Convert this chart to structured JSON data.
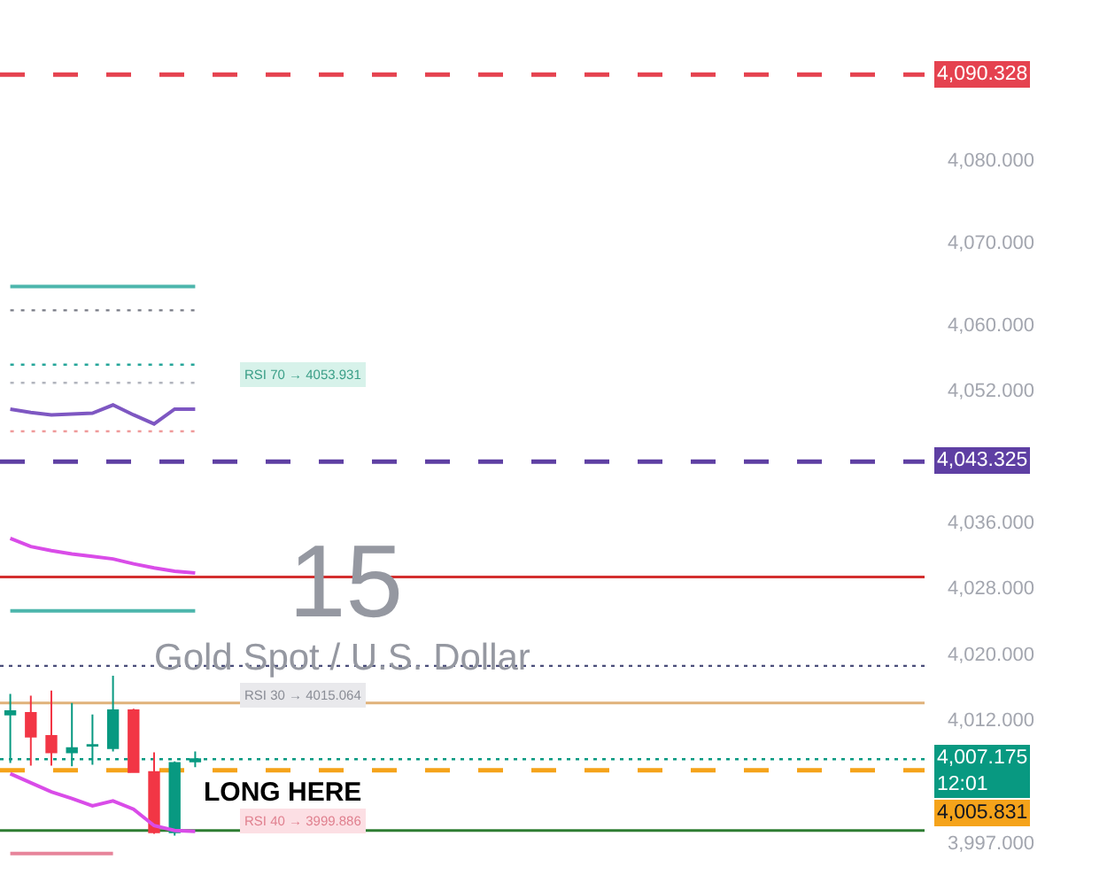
{
  "chart_data": {
    "type": "candlestick",
    "categories": [
      null,
      null,
      null,
      null,
      null,
      null,
      null,
      null,
      null,
      null,
      null,
      null,
      null,
      null,
      null,
      null,
      null,
      null,
      null,
      null,
      null,
      null,
      null,
      null,
      null,
      null,
      null,
      null,
      null,
      null,
      null,
      null,
      null,
      null,
      null,
      null,
      null,
      null,
      null,
      null,
      null,
      null,
      null,
      null,
      null
    ],
    "ohlc": [
      [
        4012.6,
        4015.1,
        4006.7,
        4013.0
      ],
      [
        4012.8,
        4014.9,
        4006.4,
        4009.9
      ],
      [
        4010.0,
        4015.5,
        4006.4,
        4008.0
      ],
      [
        4008.0,
        4014.0,
        4006.3,
        4008.5
      ],
      [
        4008.8,
        4012.6,
        4006.5,
        4008.9
      ],
      [
        4008.5,
        4017.3,
        4008.1,
        4013.1
      ],
      [
        4013.1,
        4013.3,
        4005.6,
        4005.6
      ],
      [
        4005.6,
        4008.0,
        3998.1,
        3998.3
      ],
      [
        3998.3,
        4006.9,
        3997.9,
        4006.7
      ],
      [
        4006.9,
        4008.1,
        4006.2,
        4007.175
      ],
      null,
      null,
      null,
      null,
      null,
      null,
      null,
      null,
      null,
      null,
      null,
      null,
      null,
      null,
      null,
      null,
      null,
      null,
      null,
      null,
      null,
      null,
      null,
      null,
      null,
      null,
      null,
      null,
      null,
      null,
      null,
      null,
      null,
      null,
      null
    ],
    "series": [
      {
        "type": "line",
        "color": "#d94ce8",
        "line_style": "solid",
        "values": [
          4034.0,
          4033.0,
          4032.5,
          4032.1,
          4031.8,
          4031.5,
          4030.9,
          4030.4,
          4030.0,
          4029.8,
          null,
          null,
          null,
          null,
          null,
          null,
          null,
          null,
          null,
          null,
          null,
          null,
          null,
          null,
          null,
          null,
          null,
          null,
          null,
          null,
          null,
          null,
          null,
          null,
          null,
          null,
          null,
          null,
          null,
          null,
          null,
          null,
          null,
          null,
          null
        ]
      },
      {
        "type": "line",
        "color": "#d94ce8",
        "line_style": "solid",
        "values": [
          4005.4,
          4004.3,
          4003.2,
          4002.4,
          4001.5,
          4002.1,
          4001.1,
          3999.1,
          3998.5,
          3998.4,
          null,
          null,
          null,
          null,
          null,
          null,
          null,
          null,
          null,
          null,
          null,
          null,
          null,
          null,
          null,
          null,
          null,
          null,
          null,
          null,
          null,
          null,
          null,
          null,
          null,
          null,
          null,
          null,
          null,
          null,
          null,
          null,
          null,
          null,
          null
        ]
      },
      {
        "type": "line",
        "color": "#7e57c2",
        "line_style": "solid",
        "values": [
          4049.7,
          4049.3,
          4049.0,
          4049.1,
          4049.2,
          4050.2,
          4049.0,
          4047.9,
          4049.7,
          4049.7,
          null,
          null,
          null,
          null,
          null,
          null,
          null,
          null,
          null,
          null,
          null,
          null,
          null,
          null,
          null,
          null,
          null,
          null,
          null,
          null,
          null,
          null,
          null,
          null,
          null,
          null,
          null,
          null,
          null,
          null,
          null,
          null,
          null,
          null,
          null
        ]
      },
      {
        "type": "line",
        "color": "#4db6ac",
        "line_style": "solid",
        "values": [
          4064.6,
          4064.6,
          4064.6,
          4064.6,
          4064.6,
          4064.6,
          4064.6,
          4064.6,
          4064.6,
          4064.6,
          null,
          null,
          null,
          null,
          null,
          null,
          null,
          null,
          null,
          null,
          null,
          null,
          null,
          null,
          null,
          null,
          null,
          null,
          null,
          null,
          null,
          null,
          null,
          null,
          null,
          null,
          null,
          null,
          null,
          null,
          null,
          null,
          null,
          null,
          null
        ]
      },
      {
        "type": "line",
        "color": "#787b86",
        "line_style": "dotted",
        "values": [
          4061.7,
          4061.7,
          4061.7,
          4061.7,
          4061.7,
          4061.7,
          4061.7,
          4061.7,
          4061.7,
          4061.7,
          null,
          null,
          null,
          null,
          null,
          null,
          null,
          null,
          null,
          null,
          null,
          null,
          null,
          null,
          null,
          null,
          null,
          null,
          null,
          null,
          null,
          null,
          null,
          null,
          null,
          null,
          null,
          null,
          null,
          null,
          null,
          null,
          null,
          null,
          null
        ]
      },
      {
        "type": "line",
        "color": "#26a69a",
        "line_style": "dotted",
        "values": [
          4055.1,
          4055.1,
          4055.1,
          4055.1,
          4055.1,
          4055.1,
          4055.1,
          4055.1,
          4055.1,
          4055.1,
          null,
          null,
          null,
          null,
          null,
          null,
          null,
          null,
          null,
          null,
          null,
          null,
          null,
          null,
          null,
          null,
          null,
          null,
          null,
          null,
          null,
          null,
          null,
          null,
          null,
          null,
          null,
          null,
          null,
          null,
          null,
          null,
          null,
          null,
          null
        ]
      },
      {
        "type": "line",
        "color": "#b2b5be",
        "line_style": "dotted",
        "values": [
          4052.9,
          4052.9,
          4052.9,
          4052.9,
          4052.9,
          4052.9,
          4052.9,
          4052.9,
          4052.9,
          4052.9,
          null,
          null,
          null,
          null,
          null,
          null,
          null,
          null,
          null,
          null,
          null,
          null,
          null,
          null,
          null,
          null,
          null,
          null,
          null,
          null,
          null,
          null,
          null,
          null,
          null,
          null,
          null,
          null,
          null,
          null,
          null,
          null,
          null,
          null,
          null
        ]
      },
      {
        "type": "line",
        "color": "#ef9a9a",
        "line_style": "dotted",
        "values": [
          4047.0,
          4047.0,
          4047.0,
          4047.0,
          4047.0,
          4047.0,
          4047.0,
          4047.0,
          4047.0,
          4047.0,
          null,
          null,
          null,
          null,
          null,
          null,
          null,
          null,
          null,
          null,
          null,
          null,
          null,
          null,
          null,
          null,
          null,
          null,
          null,
          null,
          null,
          null,
          null,
          null,
          null,
          null,
          null,
          null,
          null,
          null,
          null,
          null,
          null,
          null,
          null
        ]
      },
      {
        "type": "line",
        "color": "#4db6ac",
        "line_style": "solid",
        "values": [
          4025.2,
          4025.2,
          4025.2,
          4025.2,
          4025.2,
          4025.2,
          4025.2,
          4025.2,
          4025.2,
          4025.2,
          null,
          null,
          null,
          null,
          null,
          null,
          null,
          null,
          null,
          null,
          null,
          null,
          null,
          null,
          null,
          null,
          null,
          null,
          null,
          null,
          null,
          null,
          null,
          null,
          null,
          null,
          null,
          null,
          null,
          null,
          null,
          null,
          null,
          null,
          null
        ]
      },
      {
        "type": "line",
        "color": "#e7849a",
        "line_style": "solid",
        "values": [
          3995.7,
          3995.7,
          3995.7,
          3995.7,
          3995.7,
          3995.7,
          null,
          null,
          null,
          null,
          null,
          null,
          null,
          null,
          null,
          null,
          null,
          null,
          null,
          null,
          null,
          null,
          null,
          null,
          null,
          null,
          null,
          null,
          null,
          null,
          null,
          null,
          null,
          null,
          null,
          null,
          null,
          null,
          null,
          null,
          null,
          null,
          null,
          null,
          null
        ]
      }
    ],
    "ylim": [
      3993.1,
      4099.4
    ],
    "yticks": [
      {
        "value": 4080,
        "label": "4,080.000"
      },
      {
        "value": 4070,
        "label": "4,070.000"
      },
      {
        "value": 4060,
        "label": "4,060.000"
      },
      {
        "value": 4052,
        "label": "4,052.000"
      },
      {
        "value": 4036,
        "label": "4,036.000"
      },
      {
        "value": 4028,
        "label": "4,028.000"
      },
      {
        "value": 4020,
        "label": "4,020.000"
      },
      {
        "value": 4012,
        "label": "4,012.000"
      },
      {
        "value": 3997,
        "label": "3,997.000"
      }
    ],
    "tick_labels": "y",
    "ref_lines": [
      {
        "axis": "y",
        "value": 4090.328,
        "label": "4,090.328",
        "color": "#e5424f",
        "line_style": "dashed"
      },
      {
        "axis": "y",
        "value": 4043.325,
        "label": "4,043.325",
        "color": "#5e3fa3",
        "line_style": "dashed"
      },
      {
        "axis": "y",
        "value": 4029.3,
        "color": "#d32f2f",
        "line_style": "solid"
      },
      {
        "axis": "y",
        "value": 4018.5,
        "color": "#4a4e7a",
        "line_style": "dotted"
      },
      {
        "axis": "y",
        "value": 4014.0,
        "color": "#e0b27a",
        "line_style": "solid"
      },
      {
        "axis": "y",
        "value": 4007.175,
        "label": "4,007.175\n12:01",
        "color": "#089981",
        "line_style": "dotted"
      },
      {
        "axis": "y",
        "value": 4005.831,
        "label": "4,005.831",
        "color": "#f5a31a",
        "line_style": "dashed"
      },
      {
        "axis": "y",
        "value": 3998.5,
        "color": "#2e7d32",
        "line_style": "solid"
      }
    ],
    "annotations": [
      "15",
      "Gold Spot / U.S. Dollar",
      "LONG HERE",
      "RSI 70 → 4053.931",
      "RSI 30 → 4015.064",
      "RSI 40 → 3999.886"
    ]
  }
}
